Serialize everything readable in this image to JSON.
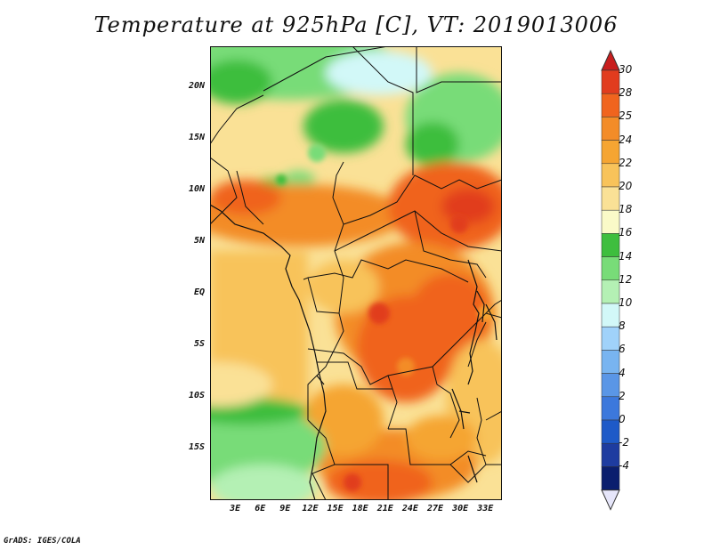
{
  "title": "Temperature at 925hPa [C], VT: 2019013006",
  "credit": "GrADS: IGES/COLA",
  "map": {
    "lat_labels": [
      "20N",
      "15N",
      "10N",
      "5N",
      "EQ",
      "5S",
      "10S",
      "15S"
    ],
    "lon_labels": [
      "3E",
      "6E",
      "9E",
      "12E",
      "15E",
      "18E",
      "21E",
      "24E",
      "27E",
      "30E",
      "33E"
    ],
    "lat_range": [
      -20,
      24
    ],
    "lon_range": [
      0,
      35
    ]
  },
  "colorbar": {
    "labels": [
      "30",
      "28",
      "25",
      "24",
      "22",
      "20",
      "18",
      "16",
      "14",
      "12",
      "10",
      "8",
      "6",
      "4",
      "2",
      "0",
      "-2",
      "-4"
    ],
    "colors": [
      "#e13c1e",
      "#f0641e",
      "#f38c28",
      "#f5a532",
      "#f8c35a",
      "#fae196",
      "#fafac8",
      "#3ebe3e",
      "#78dc78",
      "#b4f0b4",
      "#d2f8f8",
      "#a0d2fa",
      "#78b4f0",
      "#5a96e6",
      "#3c78dc",
      "#1e5ac8",
      "#1e3ca0",
      "#0a1e6e"
    ],
    "top_color": "#c81e1e",
    "bottom_color": "#e6e6fa"
  }
}
